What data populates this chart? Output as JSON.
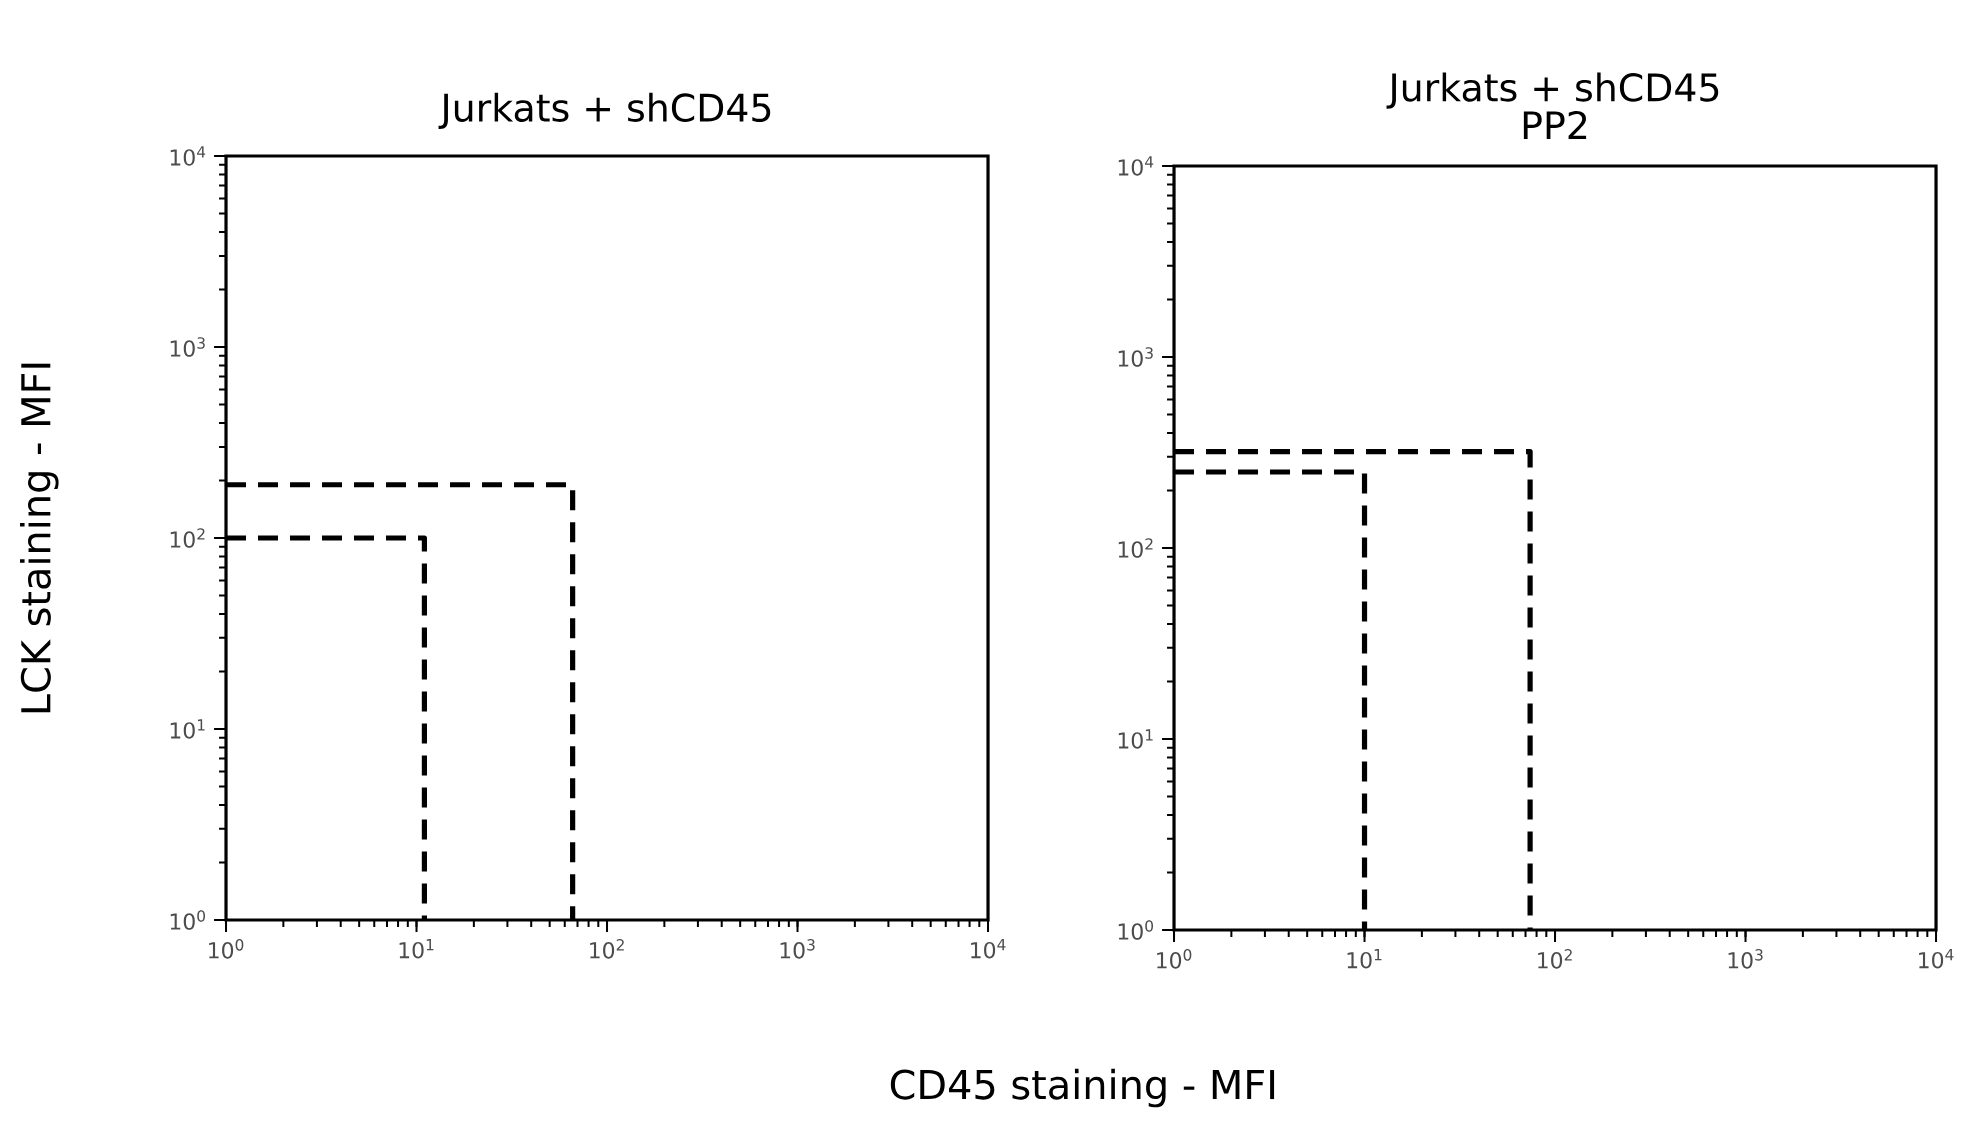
{
  "chart_data": [
    {
      "type": "line",
      "title": "Jurkats + shCD45",
      "xlabel": "CD45 staining - MFI",
      "ylabel": "LCK staining - MFI",
      "log": "xy",
      "grid": false,
      "marker": "none",
      "line_style": "dashed",
      "xlim": [
        1,
        10000
      ],
      "ylim": [
        1,
        10000
      ],
      "xticks": [
        {
          "value": 1,
          "label": "10$^{0}$"
        },
        {
          "value": 10,
          "label": "10$^{1}$"
        },
        {
          "value": 100,
          "label": "10$^{2}$"
        },
        {
          "value": 1000,
          "label": "10$^{3}$"
        },
        {
          "value": 10000,
          "label": "10$^{4}$"
        }
      ],
      "yticks": [
        {
          "value": 1,
          "label": "10$^{0}$"
        },
        {
          "value": 10,
          "label": "10$^{1}$"
        },
        {
          "value": 100,
          "label": "10$^{2}$"
        },
        {
          "value": 1000,
          "label": "10$^{3}$"
        },
        {
          "value": 10000,
          "label": "10$^{4}$"
        }
      ],
      "series": [
        {
          "color": "#000000",
          "x": [
            1,
            11,
            11
          ],
          "values": [
            100,
            100,
            1
          ]
        },
        {
          "color": "#000000",
          "x": [
            1,
            66,
            66
          ],
          "values": [
            190,
            190,
            1
          ]
        }
      ]
    },
    {
      "type": "line",
      "title": "Jurkats + shCD45",
      "subtitle": "PP2",
      "log": "xy",
      "grid": false,
      "marker": "none",
      "line_style": "dashed",
      "xlim": [
        1,
        10000
      ],
      "ylim": [
        1,
        10000
      ],
      "xticks": [
        {
          "value": 1,
          "label": "10$^{0}$"
        },
        {
          "value": 10,
          "label": "10$^{1}$"
        },
        {
          "value": 100,
          "label": "10$^{2}$"
        },
        {
          "value": 1000,
          "label": "10$^{3}$"
        },
        {
          "value": 10000,
          "label": "10$^{4}$"
        }
      ],
      "yticks": [
        {
          "value": 1,
          "label": "10$^{0}$"
        },
        {
          "value": 10,
          "label": "10$^{1}$"
        },
        {
          "value": 100,
          "label": "10$^{2}$"
        },
        {
          "value": 1000,
          "label": "10$^{3}$"
        },
        {
          "value": 10000,
          "label": "10$^{4}$"
        }
      ],
      "series": [
        {
          "color": "#000000",
          "x": [
            1,
            10,
            10
          ],
          "values": [
            250,
            250,
            1
          ]
        },
        {
          "color": "#000000",
          "x": [
            1,
            74,
            74
          ],
          "values": [
            320,
            320,
            1
          ]
        }
      ]
    }
  ]
}
